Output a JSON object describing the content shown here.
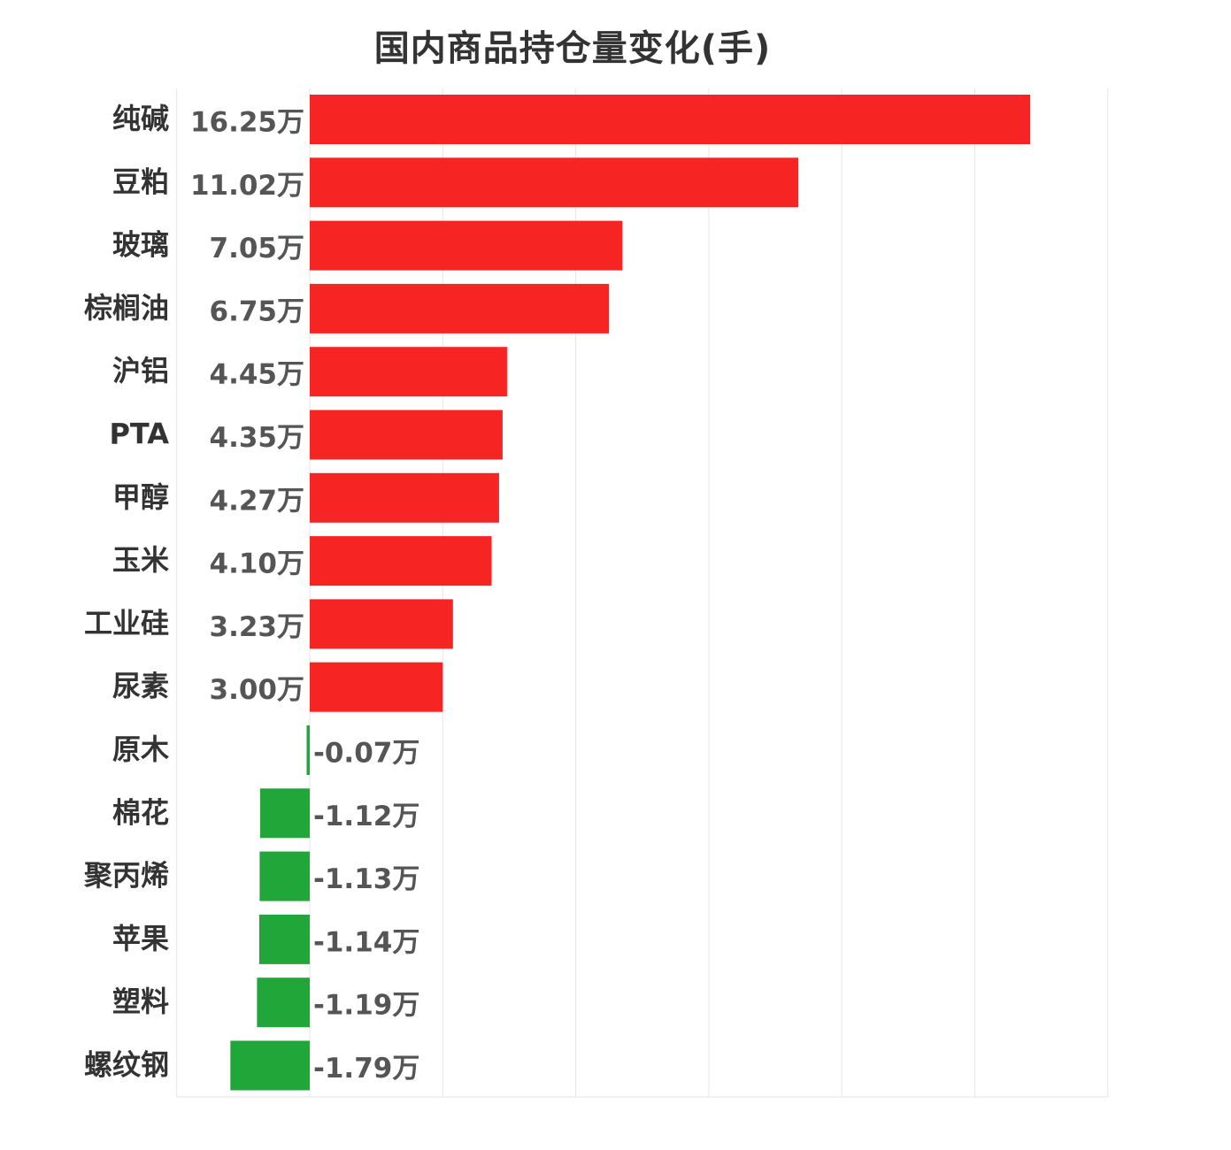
{
  "chart_data": {
    "type": "bar",
    "orientation": "horizontal",
    "title": "国内商品持仓量变化(手)",
    "unit_suffix": "万",
    "categories": [
      "纯碱",
      "豆粕",
      "玻璃",
      "棕榈油",
      "沪铝",
      "PTA",
      "甲醇",
      "玉米",
      "工业硅",
      "尿素",
      "原木",
      "棉花",
      "聚丙烯",
      "苹果",
      "塑料",
      "螺纹钢"
    ],
    "values": [
      16.25,
      11.02,
      7.05,
      6.75,
      4.45,
      4.35,
      4.27,
      4.1,
      3.23,
      3.0,
      -0.07,
      -1.12,
      -1.13,
      -1.14,
      -1.19,
      -1.79
    ],
    "value_labels": [
      "16.25万",
      "11.02万",
      "7.05万",
      "6.75万",
      "4.45万",
      "4.35万",
      "4.27万",
      "4.10万",
      "3.23万",
      "3.00万",
      "-0.07万",
      "-1.12万",
      "-1.13万",
      "-1.14万",
      "-1.19万",
      "-1.79万"
    ],
    "xlim": [
      -3,
      18
    ],
    "grid": true,
    "xlabel": "",
    "ylabel": "",
    "colors": {
      "positive": "#f72424",
      "negative": "#21a63a",
      "grid": "#e6e6e6"
    }
  }
}
